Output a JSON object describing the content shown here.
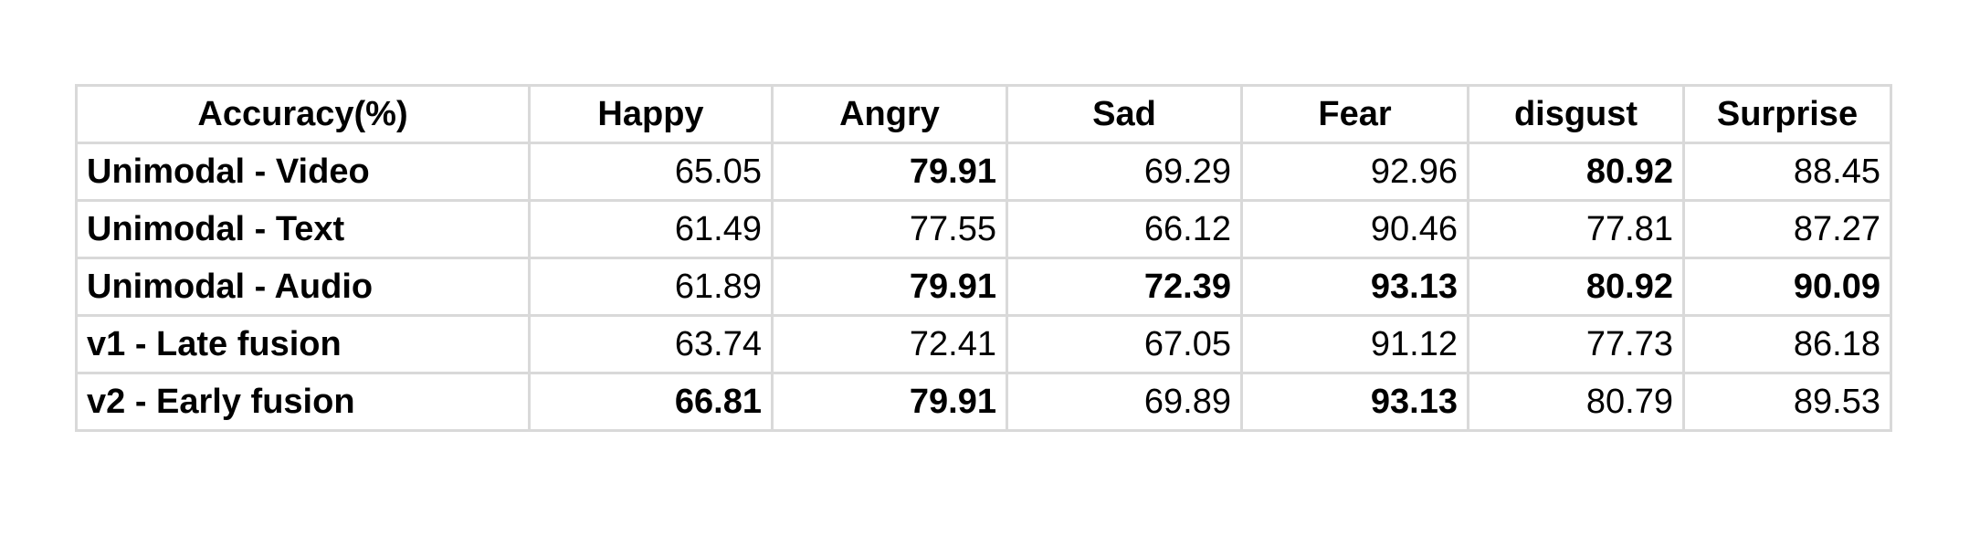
{
  "table": {
    "columns": [
      "Accuracy(%)",
      "Happy",
      "Angry",
      "Sad",
      "Fear",
      "disgust",
      "Surprise"
    ],
    "rows": [
      {
        "label": "Unimodal - Video",
        "values": [
          "65.05",
          "79.91",
          "69.29",
          "92.96",
          "80.92",
          "88.45"
        ],
        "bold": [
          false,
          true,
          false,
          false,
          true,
          false
        ]
      },
      {
        "label": "Unimodal - Text",
        "values": [
          "61.49",
          "77.55",
          "66.12",
          "90.46",
          "77.81",
          "87.27"
        ],
        "bold": [
          false,
          false,
          false,
          false,
          false,
          false
        ]
      },
      {
        "label": "Unimodal - Audio",
        "values": [
          "61.89",
          "79.91",
          "72.39",
          "93.13",
          "80.92",
          "90.09"
        ],
        "bold": [
          false,
          true,
          true,
          true,
          true,
          true
        ]
      },
      {
        "label": "v1 - Late fusion",
        "values": [
          "63.74",
          "72.41",
          "67.05",
          "91.12",
          "77.73",
          "86.18"
        ],
        "bold": [
          false,
          false,
          false,
          false,
          false,
          false
        ]
      },
      {
        "label": "v2 - Early fusion",
        "values": [
          "66.81",
          "79.91",
          "69.89",
          "93.13",
          "80.79",
          "89.53"
        ],
        "bold": [
          true,
          true,
          false,
          true,
          false,
          false
        ]
      }
    ]
  }
}
